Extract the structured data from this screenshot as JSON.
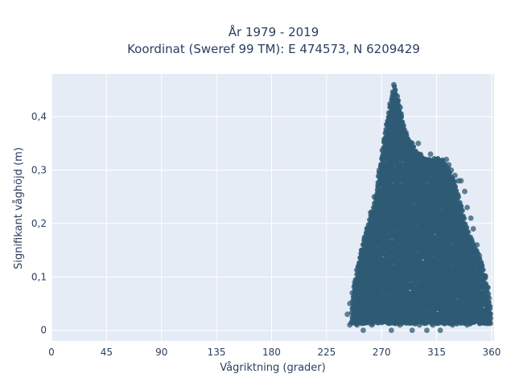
{
  "chart_data": {
    "type": "scatter",
    "title_line1": "År 1979 - 2019",
    "title_line2": "Koordinat (Sweref 99 TM): E 474573, N 6209429",
    "xlabel": "Vågriktning (grader)",
    "ylabel": "Signifikant våghöjd (m)",
    "xlim": [
      0,
      362
    ],
    "ylim": [
      -0.02,
      0.48
    ],
    "xticks": [
      0,
      45,
      90,
      135,
      180,
      225,
      270,
      315,
      360
    ],
    "xtick_labels": [
      "0",
      "45",
      "90",
      "135",
      "180",
      "225",
      "270",
      "315",
      "360"
    ],
    "yticks": [
      0,
      0.1,
      0.2,
      0.3,
      0.4
    ],
    "ytick_labels": [
      "0",
      "0,1",
      "0,2",
      "0,3",
      "0,4"
    ],
    "grid": true,
    "colors": {
      "plot_bg": "#e5ecf6",
      "grid": "#ffffff",
      "marker": "#2e5a74",
      "text": "#2a3f5f"
    },
    "envelope": [
      [
        245,
        0.02
      ],
      [
        247,
        0.08
      ],
      [
        255,
        0.17
      ],
      [
        265,
        0.25
      ],
      [
        270,
        0.33
      ],
      [
        275,
        0.4
      ],
      [
        280,
        0.46
      ],
      [
        285,
        0.42
      ],
      [
        290,
        0.37
      ],
      [
        300,
        0.33
      ],
      [
        310,
        0.32
      ],
      [
        320,
        0.32
      ],
      [
        330,
        0.28
      ],
      [
        340,
        0.19
      ],
      [
        350,
        0.14
      ],
      [
        355,
        0.1
      ],
      [
        358,
        0.06
      ],
      [
        360,
        0.03
      ]
    ],
    "series": [
      {
        "values": [
          [
            280,
            0.46
          ],
          [
            281,
            0.45
          ],
          [
            279,
            0.44
          ],
          [
            283,
            0.43
          ],
          [
            278,
            0.42
          ],
          [
            277,
            0.4
          ],
          [
            284,
            0.39
          ],
          [
            276,
            0.38
          ],
          [
            286,
            0.37
          ],
          [
            290,
            0.37
          ],
          [
            273,
            0.36
          ],
          [
            295,
            0.35
          ],
          [
            300,
            0.35
          ],
          [
            271,
            0.32
          ],
          [
            297,
            0.33
          ],
          [
            305,
            0.32
          ],
          [
            310,
            0.33
          ],
          [
            315,
            0.32
          ],
          [
            320,
            0.31
          ],
          [
            323,
            0.32
          ],
          [
            325,
            0.31
          ],
          [
            327,
            0.3
          ],
          [
            330,
            0.29
          ],
          [
            333,
            0.28
          ],
          [
            335,
            0.28
          ],
          [
            338,
            0.26
          ],
          [
            340,
            0.23
          ],
          [
            343,
            0.21
          ],
          [
            345,
            0.19
          ],
          [
            348,
            0.16
          ],
          [
            350,
            0.14
          ],
          [
            352,
            0.12
          ],
          [
            355,
            0.1
          ],
          [
            357,
            0.08
          ],
          [
            358,
            0.06
          ],
          [
            356,
            0.04
          ],
          [
            353,
            0.03
          ],
          [
            339,
            0.03
          ],
          [
            334,
            0.02
          ],
          [
            328,
            0.01
          ],
          [
            318,
            0.0
          ],
          [
            312,
            0.01
          ],
          [
            307,
            0.0
          ],
          [
            301,
            0.01
          ],
          [
            295,
            0.0
          ],
          [
            285,
            0.01
          ],
          [
            278,
            0.0
          ],
          [
            262,
            0.01
          ],
          [
            255,
            0.0
          ],
          [
            250,
            0.01
          ],
          [
            244,
            0.01
          ],
          [
            242,
            0.03
          ],
          [
            244,
            0.05
          ],
          [
            246,
            0.07
          ],
          [
            248,
            0.09
          ],
          [
            251,
            0.12
          ],
          [
            254,
            0.15
          ],
          [
            258,
            0.19
          ],
          [
            261,
            0.22
          ],
          [
            264,
            0.25
          ],
          [
            268,
            0.3
          ],
          [
            262,
            0.2
          ],
          [
            260,
            0.16
          ],
          [
            265,
            0.12
          ],
          [
            270,
            0.1
          ],
          [
            275,
            0.15
          ],
          [
            280,
            0.2
          ],
          [
            285,
            0.25
          ],
          [
            290,
            0.3
          ],
          [
            295,
            0.28
          ],
          [
            300,
            0.22
          ],
          [
            305,
            0.18
          ],
          [
            310,
            0.14
          ],
          [
            315,
            0.1
          ],
          [
            320,
            0.07
          ],
          [
            325,
            0.05
          ],
          [
            330,
            0.04
          ],
          [
            335,
            0.06
          ],
          [
            340,
            0.08
          ],
          [
            345,
            0.11
          ],
          [
            350,
            0.07
          ],
          [
            346,
            0.04
          ],
          [
            340,
            0.01
          ],
          [
            318,
            0.02
          ],
          [
            282,
            0.02
          ],
          [
            268,
            0.03
          ],
          [
            258,
            0.04
          ],
          [
            252,
            0.05
          ],
          [
            266,
            0.07
          ],
          [
            276,
            0.06
          ]
        ]
      }
    ]
  }
}
